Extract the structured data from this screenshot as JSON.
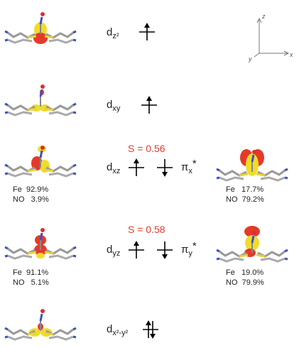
{
  "rows": [
    {
      "label": {
        "main": "d",
        "sub": "z²"
      }
    },
    {
      "label": {
        "main": "d",
        "sub": "xy"
      }
    },
    {
      "label": {
        "main": "d",
        "sub": "xz"
      },
      "overlap": "S = 0.56",
      "partner": {
        "main": "π",
        "sub": "x",
        "sup": "*"
      },
      "left_composition": [
        "Fe  92.9%",
        "NO   3.9%"
      ],
      "right_composition": [
        "Fe   17.7%",
        "NO  79.2%"
      ]
    },
    {
      "label": {
        "main": "d",
        "sub": "yz"
      },
      "overlap": "S = 0.58",
      "partner": {
        "main": "π",
        "sub": "y",
        "sup": "*"
      },
      "left_composition": [
        "Fe  91.1%",
        "NO   5.1%"
      ],
      "right_composition": [
        "Fe   19.0%",
        "NO  79.9%"
      ]
    },
    {
      "label": {
        "main": "d",
        "sub": "x²-y²"
      }
    }
  ],
  "axes": {
    "z": "z",
    "x": "x",
    "y": "y"
  }
}
